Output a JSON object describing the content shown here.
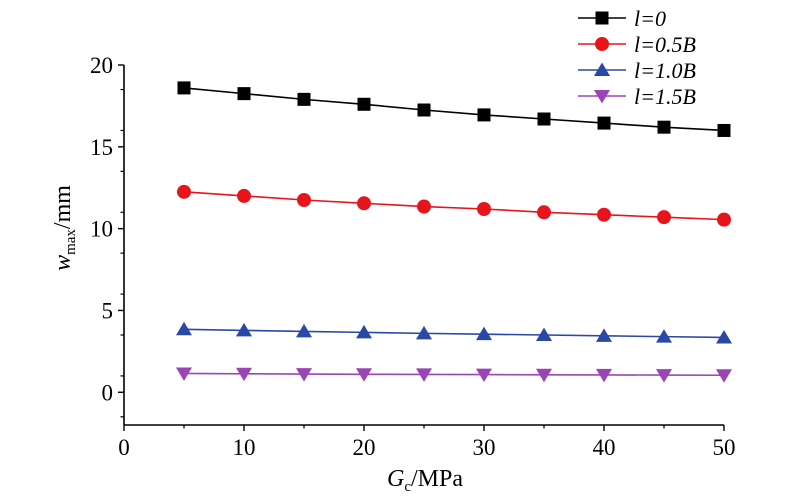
{
  "chart_data": {
    "type": "line",
    "xlabel": {
      "main": "G",
      "sub": "c",
      "unit": "/MPa"
    },
    "ylabel": {
      "main": "w",
      "sub": "max",
      "unit": "/mm"
    },
    "xlim": [
      0,
      50
    ],
    "ylim": [
      -2,
      20
    ],
    "x_ticks": [
      0,
      10,
      20,
      30,
      40,
      50
    ],
    "y_ticks": [
      0,
      5,
      10,
      15,
      20
    ],
    "x": [
      5,
      10,
      15,
      20,
      25,
      30,
      35,
      40,
      45,
      50
    ],
    "grid": false,
    "legend_position": "top-right",
    "series": [
      {
        "name": "l=0",
        "color": "#000000",
        "marker": "square",
        "values": [
          18.6,
          18.25,
          17.9,
          17.6,
          17.25,
          16.95,
          16.7,
          16.45,
          16.2,
          16.0
        ]
      },
      {
        "name": "l=0.5B",
        "color": "#e8141b",
        "marker": "circle",
        "values": [
          12.25,
          12.0,
          11.75,
          11.55,
          11.35,
          11.2,
          11.0,
          10.85,
          10.7,
          10.55
        ]
      },
      {
        "name": "l=1.0B",
        "color": "#2a48a6",
        "marker": "triangle-up",
        "values": [
          3.85,
          3.78,
          3.72,
          3.66,
          3.6,
          3.55,
          3.5,
          3.45,
          3.4,
          3.35
        ]
      },
      {
        "name": "l=1.5B",
        "color": "#9b45b5",
        "marker": "triangle-down",
        "values": [
          1.15,
          1.13,
          1.11,
          1.1,
          1.09,
          1.08,
          1.07,
          1.06,
          1.05,
          1.04
        ]
      }
    ]
  }
}
